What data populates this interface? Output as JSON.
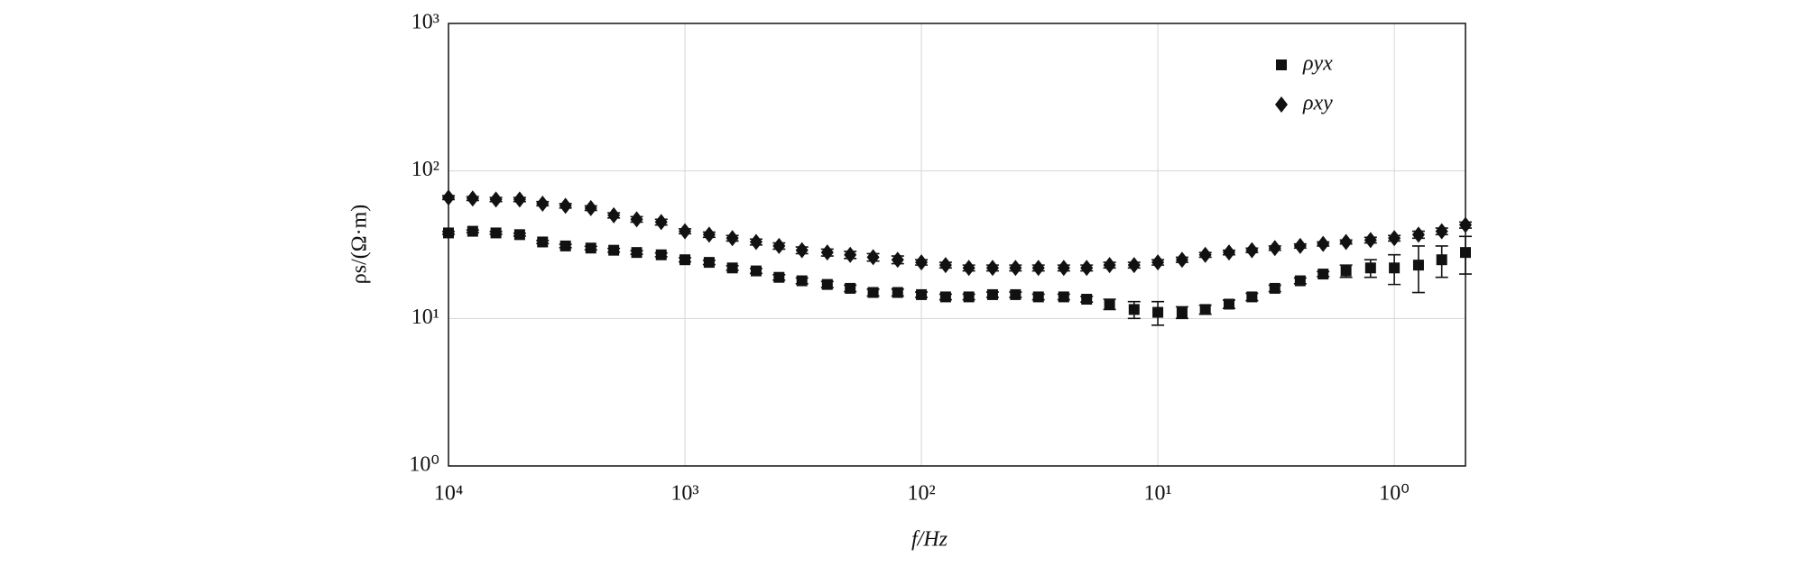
{
  "chart_data": {
    "type": "scatter",
    "xlabel": "f/Hz",
    "ylabel": "ρs/(Ω·m)",
    "x": [
      10000,
      7900,
      6300,
      5000,
      4000,
      3200,
      2500,
      2000,
      1600,
      1260,
      1000,
      790,
      630,
      500,
      400,
      320,
      250,
      200,
      160,
      126,
      100,
      79,
      63,
      50,
      40,
      32,
      25,
      20,
      16,
      12.6,
      10,
      7.9,
      6.3,
      5,
      4,
      3.2,
      2.5,
      2,
      1.6,
      1.26,
      1,
      0.79,
      0.63,
      0.5
    ],
    "series": [
      {
        "name": "ρyx",
        "color": "#111111",
        "marker": "square",
        "values": [
          38,
          39,
          38,
          37,
          33,
          31,
          30,
          29,
          28,
          27,
          25,
          24,
          22,
          21,
          19,
          18,
          17,
          16,
          15,
          15,
          14.5,
          14,
          14,
          14.5,
          14.5,
          14,
          14,
          13.5,
          12.5,
          11.5,
          11,
          11,
          11.5,
          12.5,
          14,
          16,
          18,
          20,
          21,
          22,
          22,
          23,
          25,
          28
        ],
        "errors": [
          0.8,
          0.8,
          0.8,
          0.8,
          0.8,
          0.8,
          0.8,
          0.8,
          0.8,
          0.8,
          0.8,
          0.8,
          0.8,
          0.8,
          0.8,
          0.8,
          0.8,
          0.8,
          0.8,
          0.8,
          0.6,
          0.6,
          0.6,
          0.6,
          0.6,
          0.6,
          0.6,
          0.6,
          1,
          1.5,
          2,
          1,
          0.8,
          0.8,
          0.8,
          0.8,
          0.8,
          0.8,
          2,
          3,
          5,
          8,
          6,
          8
        ]
      },
      {
        "name": "ρxy",
        "color": "#111111",
        "marker": "diamond",
        "values": [
          66,
          65,
          64,
          64,
          60,
          58,
          56,
          50,
          47,
          45,
          39,
          37,
          35,
          33,
          31,
          29,
          28,
          27,
          26,
          25,
          24,
          23,
          22,
          22,
          22,
          22,
          22,
          22,
          23,
          23,
          24,
          25,
          27,
          28,
          29,
          30,
          31,
          32,
          33,
          34,
          35,
          37,
          39,
          43
        ],
        "errors": [
          2,
          2,
          2,
          2,
          2,
          2,
          2,
          2,
          2,
          2,
          1.5,
          1.5,
          1.5,
          1.5,
          1.5,
          1.5,
          1.5,
          1.5,
          1.5,
          1.5,
          1,
          1,
          1,
          1,
          1,
          1,
          1,
          1,
          1,
          1,
          1,
          1,
          1,
          1,
          1,
          1,
          1,
          1,
          1,
          1.5,
          1.5,
          2,
          2,
          2
        ]
      }
    ],
    "xscale": "log",
    "yscale": "log",
    "xlim": [
      10000,
      0.5
    ],
    "ylim": [
      1,
      1000
    ],
    "xticks": [
      {
        "value": 10000,
        "label": "10⁴"
      },
      {
        "value": 1000,
        "label": "10³"
      },
      {
        "value": 100,
        "label": "10²"
      },
      {
        "value": 10,
        "label": "10¹"
      },
      {
        "value": 1,
        "label": "10⁰"
      }
    ],
    "yticks": [
      {
        "value": 1,
        "label": "10⁰"
      },
      {
        "value": 10,
        "label": "10¹"
      },
      {
        "value": 100,
        "label": "10²"
      },
      {
        "value": 1000,
        "label": "10³"
      }
    ],
    "grid": true,
    "legend": "upper right"
  }
}
